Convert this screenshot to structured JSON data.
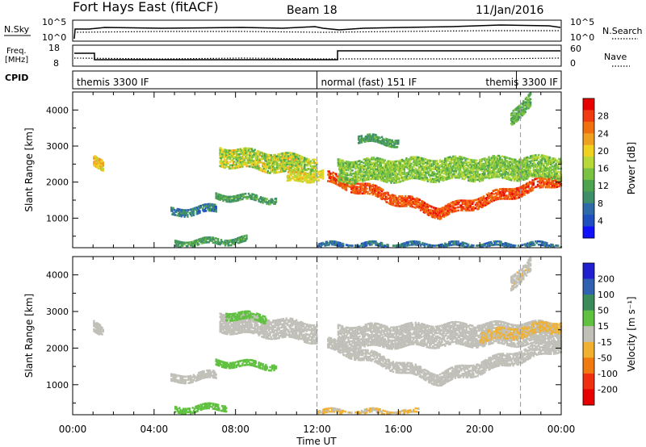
{
  "header": {
    "station": "Fort Hays East (fitACF)",
    "beam": "Beam 18",
    "date": "11/Jan/2016"
  },
  "summary_panels": {
    "nsky_label": "N.Sky",
    "nsky_ticks": [
      "10^5",
      "10^0"
    ],
    "nsearch_label": "N.Search",
    "nsearch_ticks": [
      "10^5",
      "10^0"
    ],
    "freq_label_line1": "Freq.",
    "freq_label_line2": "[MHz]",
    "freq_ticks": [
      "18",
      "8"
    ],
    "nave_label": "Nave",
    "nave_ticks": [
      "60",
      "0"
    ],
    "cpid_label": "CPID",
    "cpid_segments": [
      {
        "label": "themis 3300 IF",
        "start_h": 0,
        "end_h": 12
      },
      {
        "label": "normal (fast) 151 IF",
        "start_h": 12,
        "end_h": 21.8
      },
      {
        "label": "themis 3300 IF",
        "start_h": 21.8,
        "end_h": 24
      }
    ]
  },
  "chart_data": [
    {
      "type": "heatmap",
      "title": "",
      "panel": "power",
      "xlabel": "Time UT",
      "ylabel": "Slant Range [km]",
      "xlim": [
        0,
        24
      ],
      "ylim": [
        180,
        4500
      ],
      "x_tick_labels": [
        "00:00",
        "04:00",
        "08:00",
        "12:00",
        "16:00",
        "20:00",
        "00:00"
      ],
      "y_ticks": [
        1000,
        2000,
        3000,
        4000
      ],
      "y_tick_labels": [
        "1000",
        "2000",
        "3000",
        "4000"
      ],
      "dashed_markers_h": [
        12,
        22
      ],
      "colorbar": {
        "label": "Power [dB]",
        "range": [
          0,
          32
        ],
        "tick_labels": [
          "4",
          "8",
          "12",
          "16",
          "20",
          "24",
          "28"
        ],
        "colors": [
          "#1010ff",
          "#2050c0",
          "#2f6aa8",
          "#3f8e6a",
          "#4ea44e",
          "#7ac241",
          "#b8d838",
          "#f0d020",
          "#f0a020",
          "#f07010",
          "#f03a10",
          "#e80000"
        ]
      },
      "echo_regions": [
        {
          "t0": 1.0,
          "t1": 1.5,
          "r_center": [
            2600,
            2500
          ],
          "width": 300,
          "val": [
            18,
            24
          ]
        },
        {
          "t0": 4.8,
          "t1": 7.0,
          "r_center": [
            1150,
            1250
          ],
          "width": 200,
          "val": [
            4,
            12
          ]
        },
        {
          "t0": 5.0,
          "t1": 8.5,
          "r_center": [
            280,
            380
          ],
          "width": 140,
          "val": [
            8,
            14
          ]
        },
        {
          "t0": 7.0,
          "t1": 10.0,
          "r_center": [
            1600,
            1500
          ],
          "width": 160,
          "val": [
            8,
            14
          ]
        },
        {
          "t0": 7.2,
          "t1": 12.0,
          "r_center": [
            2700,
            2400
          ],
          "width": 500,
          "val": [
            12,
            22
          ]
        },
        {
          "t0": 10.5,
          "t1": 12.3,
          "r_center": [
            2100,
            2200
          ],
          "width": 260,
          "val": [
            16,
            22
          ]
        },
        {
          "t0": 12.5,
          "t1": 18.0,
          "r_center": [
            2100,
            1150
          ],
          "width": 280,
          "val": [
            24,
            30
          ]
        },
        {
          "t0": 18.0,
          "t1": 24.0,
          "r_center": [
            1150,
            2100
          ],
          "width": 300,
          "val": [
            24,
            30
          ]
        },
        {
          "t0": 13.0,
          "t1": 24.0,
          "r_center": [
            2300,
            2400
          ],
          "width": 600,
          "val": [
            12,
            18
          ]
        },
        {
          "t0": 14.0,
          "t1": 16.0,
          "r_center": [
            3200,
            3100
          ],
          "width": 200,
          "val": [
            8,
            14
          ]
        },
        {
          "t0": 21.5,
          "t1": 22.5,
          "r_center": [
            3800,
            4300
          ],
          "width": 400,
          "val": [
            10,
            16
          ]
        },
        {
          "t0": 12.0,
          "t1": 24.0,
          "r_center": [
            250,
            250
          ],
          "width": 120,
          "val": [
            4,
            10
          ]
        }
      ]
    },
    {
      "type": "heatmap",
      "title": "",
      "panel": "velocity",
      "xlabel": "Time UT",
      "ylabel": "Slant Range [km]",
      "xlim": [
        0,
        24
      ],
      "ylim": [
        180,
        4500
      ],
      "x_tick_labels": [
        "00:00",
        "04:00",
        "08:00",
        "12:00",
        "16:00",
        "20:00",
        "00:00"
      ],
      "y_ticks": [
        1000,
        2000,
        3000,
        4000
      ],
      "y_tick_labels": [
        "1000",
        "2000",
        "3000",
        "4000"
      ],
      "dashed_markers_h": [
        12,
        22
      ],
      "colorbar": {
        "label": "Velocity [m s⁻¹]",
        "range": [
          -250,
          250
        ],
        "tick_labels": [
          "200",
          "100",
          "50",
          "15",
          "-15",
          "-50",
          "-100",
          "-200"
        ],
        "colors": [
          "#2020d0",
          "#3060b0",
          "#3a8a5a",
          "#60c040",
          "#c0c0b8",
          "#f0b030",
          "#f07a10",
          "#f03010",
          "#e80000"
        ]
      },
      "echo_regions": [
        {
          "t0": 1.0,
          "t1": 1.5,
          "r_center": [
            2600,
            2500
          ],
          "width": 300,
          "val": [
            0,
            10
          ]
        },
        {
          "t0": 4.8,
          "t1": 7.0,
          "r_center": [
            1150,
            1250
          ],
          "width": 200,
          "val": [
            0,
            10
          ]
        },
        {
          "t0": 5.0,
          "t1": 7.5,
          "r_center": [
            300,
            380
          ],
          "width": 140,
          "val": [
            40,
            60
          ]
        },
        {
          "t0": 7.0,
          "t1": 10.0,
          "r_center": [
            1600,
            1500
          ],
          "width": 160,
          "val": [
            40,
            60
          ]
        },
        {
          "t0": 7.2,
          "t1": 12.0,
          "r_center": [
            2700,
            2400
          ],
          "width": 500,
          "val": [
            0,
            10
          ]
        },
        {
          "t0": 7.5,
          "t1": 9.5,
          "r_center": [
            2900,
            2800
          ],
          "width": 200,
          "val": [
            40,
            60
          ]
        },
        {
          "t0": 12.5,
          "t1": 18.0,
          "r_center": [
            2100,
            1150
          ],
          "width": 300,
          "val": [
            -5,
            5
          ]
        },
        {
          "t0": 18.0,
          "t1": 24.0,
          "r_center": [
            1150,
            2100
          ],
          "width": 320,
          "val": [
            -5,
            5
          ]
        },
        {
          "t0": 13.0,
          "t1": 24.0,
          "r_center": [
            2300,
            2400
          ],
          "width": 600,
          "val": [
            -10,
            10
          ]
        },
        {
          "t0": 20.0,
          "t1": 24.0,
          "r_center": [
            2300,
            2600
          ],
          "width": 300,
          "val": [
            -40,
            -20
          ]
        },
        {
          "t0": 21.5,
          "t1": 22.5,
          "r_center": [
            3800,
            4300
          ],
          "width": 400,
          "val": [
            -30,
            0
          ]
        },
        {
          "t0": 12.0,
          "t1": 17.0,
          "r_center": [
            250,
            250
          ],
          "width": 120,
          "val": [
            -40,
            -20
          ]
        }
      ]
    }
  ]
}
